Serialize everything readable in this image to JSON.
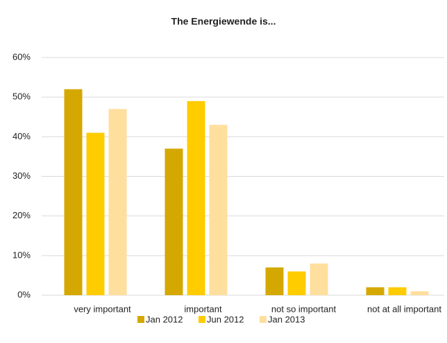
{
  "chart_data": {
    "type": "bar",
    "title": "The Energiewende is...",
    "categories": [
      "very important",
      "important",
      "not so important",
      "not at all important"
    ],
    "series": [
      {
        "name": "Jan 2012",
        "color": "#d4a800",
        "values": [
          52,
          37,
          7,
          2
        ]
      },
      {
        "name": "Jun 2012",
        "color": "#ffcc00",
        "values": [
          41,
          49,
          6,
          2
        ]
      },
      {
        "name": "Jan 2013",
        "color": "#ffdf9e",
        "values": [
          47,
          43,
          8,
          1
        ]
      }
    ],
    "ylim": [
      0,
      60
    ],
    "yticks": [
      {
        "value": 0,
        "label": "0%"
      },
      {
        "value": 10,
        "label": "10%"
      },
      {
        "value": 20,
        "label": "20%"
      },
      {
        "value": 30,
        "label": "30%"
      },
      {
        "value": 40,
        "label": "40%"
      },
      {
        "value": 50,
        "label": "50%"
      },
      {
        "value": 60,
        "label": "60%"
      }
    ],
    "grid": true,
    "legend": "bottom"
  }
}
